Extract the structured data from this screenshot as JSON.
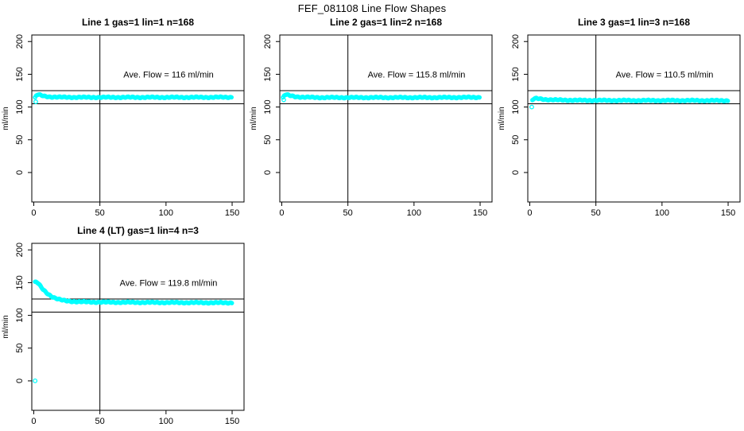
{
  "page": {
    "title": "FEF_081108  Line Flow Shapes"
  },
  "colors": {
    "marker": "#00ffff",
    "axis": "#000000",
    "text": "#000000",
    "background": "#ffffff"
  },
  "chart_data": [
    {
      "type": "scatter",
      "title": "Line 1 gas=1 lin=1 n=168",
      "annotation": "Ave. Flow =  116  ml/min",
      "ave_flow_ml_min": 116,
      "n_points": 168,
      "xlabel": "",
      "ylabel": "ml/min",
      "xlim": [
        -1.5,
        159
      ],
      "ylim": [
        -45,
        210
      ],
      "xticks": [
        0,
        50,
        100,
        150
      ],
      "yticks": [
        0,
        50,
        100,
        150,
        200
      ],
      "vline_x": 50,
      "hlines_y": [
        105,
        125
      ],
      "grid": false,
      "series": [
        {
          "name": "flow-trace",
          "marker": "open-circle",
          "step": 0.75,
          "anchors": [
            [
              1,
              114
            ],
            [
              2,
              118
            ],
            [
              3,
              119
            ],
            [
              5,
              118
            ],
            [
              8,
              116.5
            ],
            [
              13,
              115.5
            ],
            [
              20,
              115
            ],
            [
              40,
              114.8
            ],
            [
              80,
              114.8
            ],
            [
              120,
              114.8
            ],
            [
              150,
              115
            ]
          ]
        },
        {
          "name": "start-outlier",
          "marker": "open-circle",
          "points": [
            [
              1.5,
              108
            ]
          ]
        }
      ]
    },
    {
      "type": "scatter",
      "title": "Line 2 gas=1 lin=2 n=168",
      "annotation": "Ave. Flow =  115.8  ml/min",
      "ave_flow_ml_min": 115.8,
      "n_points": 168,
      "xlabel": "",
      "ylabel": "ml/min",
      "xlim": [
        -1.5,
        159
      ],
      "ylim": [
        -45,
        210
      ],
      "xticks": [
        0,
        50,
        100,
        150
      ],
      "yticks": [
        0,
        50,
        100,
        150,
        200
      ],
      "vline_x": 50,
      "hlines_y": [
        105,
        125
      ],
      "grid": false,
      "series": [
        {
          "name": "flow-trace",
          "marker": "open-circle",
          "step": 0.75,
          "anchors": [
            [
              1,
              114
            ],
            [
              2,
              118
            ],
            [
              3,
              119
            ],
            [
              6,
              117.5
            ],
            [
              10,
              116
            ],
            [
              16,
              115
            ],
            [
              30,
              114.5
            ],
            [
              70,
              114.5
            ],
            [
              110,
              114.5
            ],
            [
              150,
              114.8
            ]
          ]
        },
        {
          "name": "start-outlier",
          "marker": "open-circle",
          "points": [
            [
              1.5,
              111
            ]
          ]
        }
      ]
    },
    {
      "type": "scatter",
      "title": "Line 3 gas=1 lin=3 n=168",
      "annotation": "Ave. Flow =  110.5  ml/min",
      "ave_flow_ml_min": 110.5,
      "n_points": 168,
      "xlabel": "",
      "ylabel": "ml/min",
      "xlim": [
        -1.5,
        159
      ],
      "ylim": [
        -45,
        210
      ],
      "xticks": [
        0,
        50,
        100,
        150
      ],
      "yticks": [
        0,
        50,
        100,
        150,
        200
      ],
      "vline_x": 50,
      "hlines_y": [
        105,
        125
      ],
      "grid": false,
      "series": [
        {
          "name": "flow-trace",
          "marker": "open-circle",
          "step": 0.75,
          "anchors": [
            [
              2,
              110.5
            ],
            [
              3,
              112.5
            ],
            [
              5,
              113
            ],
            [
              8,
              112.5
            ],
            [
              12,
              111.5
            ],
            [
              20,
              110.8
            ],
            [
              40,
              110.2
            ],
            [
              80,
              110
            ],
            [
              120,
              110
            ],
            [
              150,
              109.8
            ]
          ]
        },
        {
          "name": "start-outlier",
          "marker": "open-circle",
          "points": [
            [
              1.5,
              100
            ]
          ]
        }
      ]
    },
    {
      "type": "scatter",
      "title": "Line 4 (LT) gas=1 lin=4 n=3",
      "annotation": "Ave. Flow =  119.8  ml/min",
      "ave_flow_ml_min": 119.8,
      "n_points": 3,
      "xlabel": "",
      "ylabel": "ml/min",
      "xlim": [
        -1.5,
        159
      ],
      "ylim": [
        -45,
        210
      ],
      "xticks": [
        0,
        50,
        100,
        150
      ],
      "yticks": [
        0,
        50,
        100,
        150,
        200
      ],
      "vline_x": 50,
      "hlines_y": [
        105,
        125
      ],
      "grid": false,
      "series": [
        {
          "name": "flow-trace",
          "marker": "open-circle",
          "step": 0.6,
          "anchors": [
            [
              1,
              150.5
            ],
            [
              2,
              151
            ],
            [
              3,
              149.5
            ],
            [
              4,
              147
            ],
            [
              5,
              144.5
            ],
            [
              6,
              142
            ],
            [
              7,
              139.5
            ],
            [
              8,
              137.5
            ],
            [
              10,
              134
            ],
            [
              12,
              131
            ],
            [
              14,
              128.5
            ],
            [
              16,
              126.5
            ],
            [
              18,
              125
            ],
            [
              20,
              123.8
            ],
            [
              24,
              122.3
            ],
            [
              28,
              121.5
            ],
            [
              34,
              120.8
            ],
            [
              45,
              120.3
            ],
            [
              60,
              120
            ],
            [
              80,
              119.8
            ],
            [
              100,
              119.6
            ],
            [
              125,
              119.4
            ],
            [
              150,
              119.2
            ]
          ]
        },
        {
          "name": "zero-outlier",
          "marker": "open-circle",
          "points": [
            [
              1,
              0
            ]
          ]
        }
      ]
    }
  ]
}
